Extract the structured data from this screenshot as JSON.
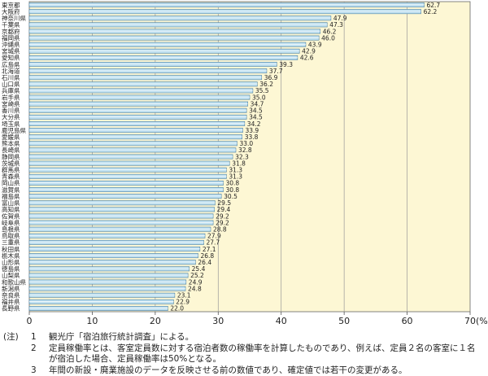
{
  "chart_data": {
    "type": "bar",
    "orientation": "horizontal",
    "categories": [
      "東京都",
      "大阪府",
      "神奈川県",
      "千葉県",
      "京都府",
      "福岡県",
      "沖縄県",
      "宮城県",
      "愛知県",
      "広島県",
      "北海道",
      "石川県",
      "山口県",
      "兵庫県",
      "岩手県",
      "宮崎県",
      "香川県",
      "大分県",
      "埼玉県",
      "鹿児島県",
      "愛媛県",
      "熊本県",
      "長崎県",
      "静岡県",
      "茨城県",
      "群馬県",
      "青森県",
      "岡山県",
      "滋賀県",
      "福島県",
      "富山県",
      "高知県",
      "佐賀県",
      "岐阜県",
      "島根県",
      "鳥取県",
      "三重県",
      "秋田県",
      "栃木県",
      "山形県",
      "徳島県",
      "山梨県",
      "和歌山県",
      "新潟県",
      "奈良県",
      "福井県",
      "長野県"
    ],
    "values": [
      62.7,
      62.2,
      47.9,
      47.3,
      46.2,
      46.0,
      43.9,
      42.9,
      42.6,
      39.3,
      37.7,
      36.9,
      36.2,
      35.5,
      35.0,
      34.7,
      34.5,
      34.5,
      34.2,
      33.9,
      33.8,
      33.0,
      32.8,
      32.3,
      31.8,
      31.3,
      31.3,
      30.8,
      30.8,
      30.5,
      29.5,
      29.4,
      29.2,
      29.2,
      28.8,
      27.9,
      27.7,
      27.1,
      26.8,
      26.4,
      25.4,
      25.2,
      24.9,
      24.8,
      23.1,
      22.9,
      22.0
    ],
    "value_labels": [
      "62.7",
      "62.2",
      "47.9",
      "47.3",
      "46.2",
      "46.0",
      "43.9",
      "42.9",
      "42.6",
      "39.3",
      "37.7",
      "36.9",
      "36.2",
      "35.5",
      "35.0",
      "34.7",
      "34.5",
      "34.5",
      "34.2",
      "33.9",
      "33.8",
      "33.0",
      "32.8",
      "32.3",
      "31.8",
      "31.3",
      "31.3",
      "30.8",
      "30.8",
      "30.5",
      "29.5",
      "29.4",
      "29.2",
      "29.2",
      "28.8",
      "27.9",
      "27.7",
      "27.1",
      "26.8",
      "26.4",
      "25.4",
      "25.2",
      "24.9",
      "24.8",
      "23.1",
      "22.9",
      "22.0"
    ],
    "x_ticks": [
      "0",
      "10",
      "20",
      "30",
      "40",
      "50",
      "60",
      "70"
    ],
    "x_unit": "(%)",
    "xlim": [
      0,
      70
    ],
    "grid": true,
    "colors": {
      "plot_bg": "#fdf7d4",
      "bar_fill": "#bfe0f0",
      "bar_stroke": "#4a7fa3",
      "grid": "#999999"
    }
  },
  "notes": {
    "tag": "(注)",
    "items": [
      {
        "num": "1",
        "lines": [
          "観光庁「宿泊旅行統計調査」による。"
        ]
      },
      {
        "num": "2",
        "lines": [
          "定員稼働率とは、客室定員数に対する宿泊者数の稼働率を計算したものであり、例えば、定員２名の客室に１名",
          "が宿泊した場合、定員稼働率は50%となる。"
        ]
      },
      {
        "num": "3",
        "lines": [
          "年間の新設・廃業施設のデータを反映させる前の数値であり、確定値では若干の変更がある。"
        ]
      }
    ]
  }
}
